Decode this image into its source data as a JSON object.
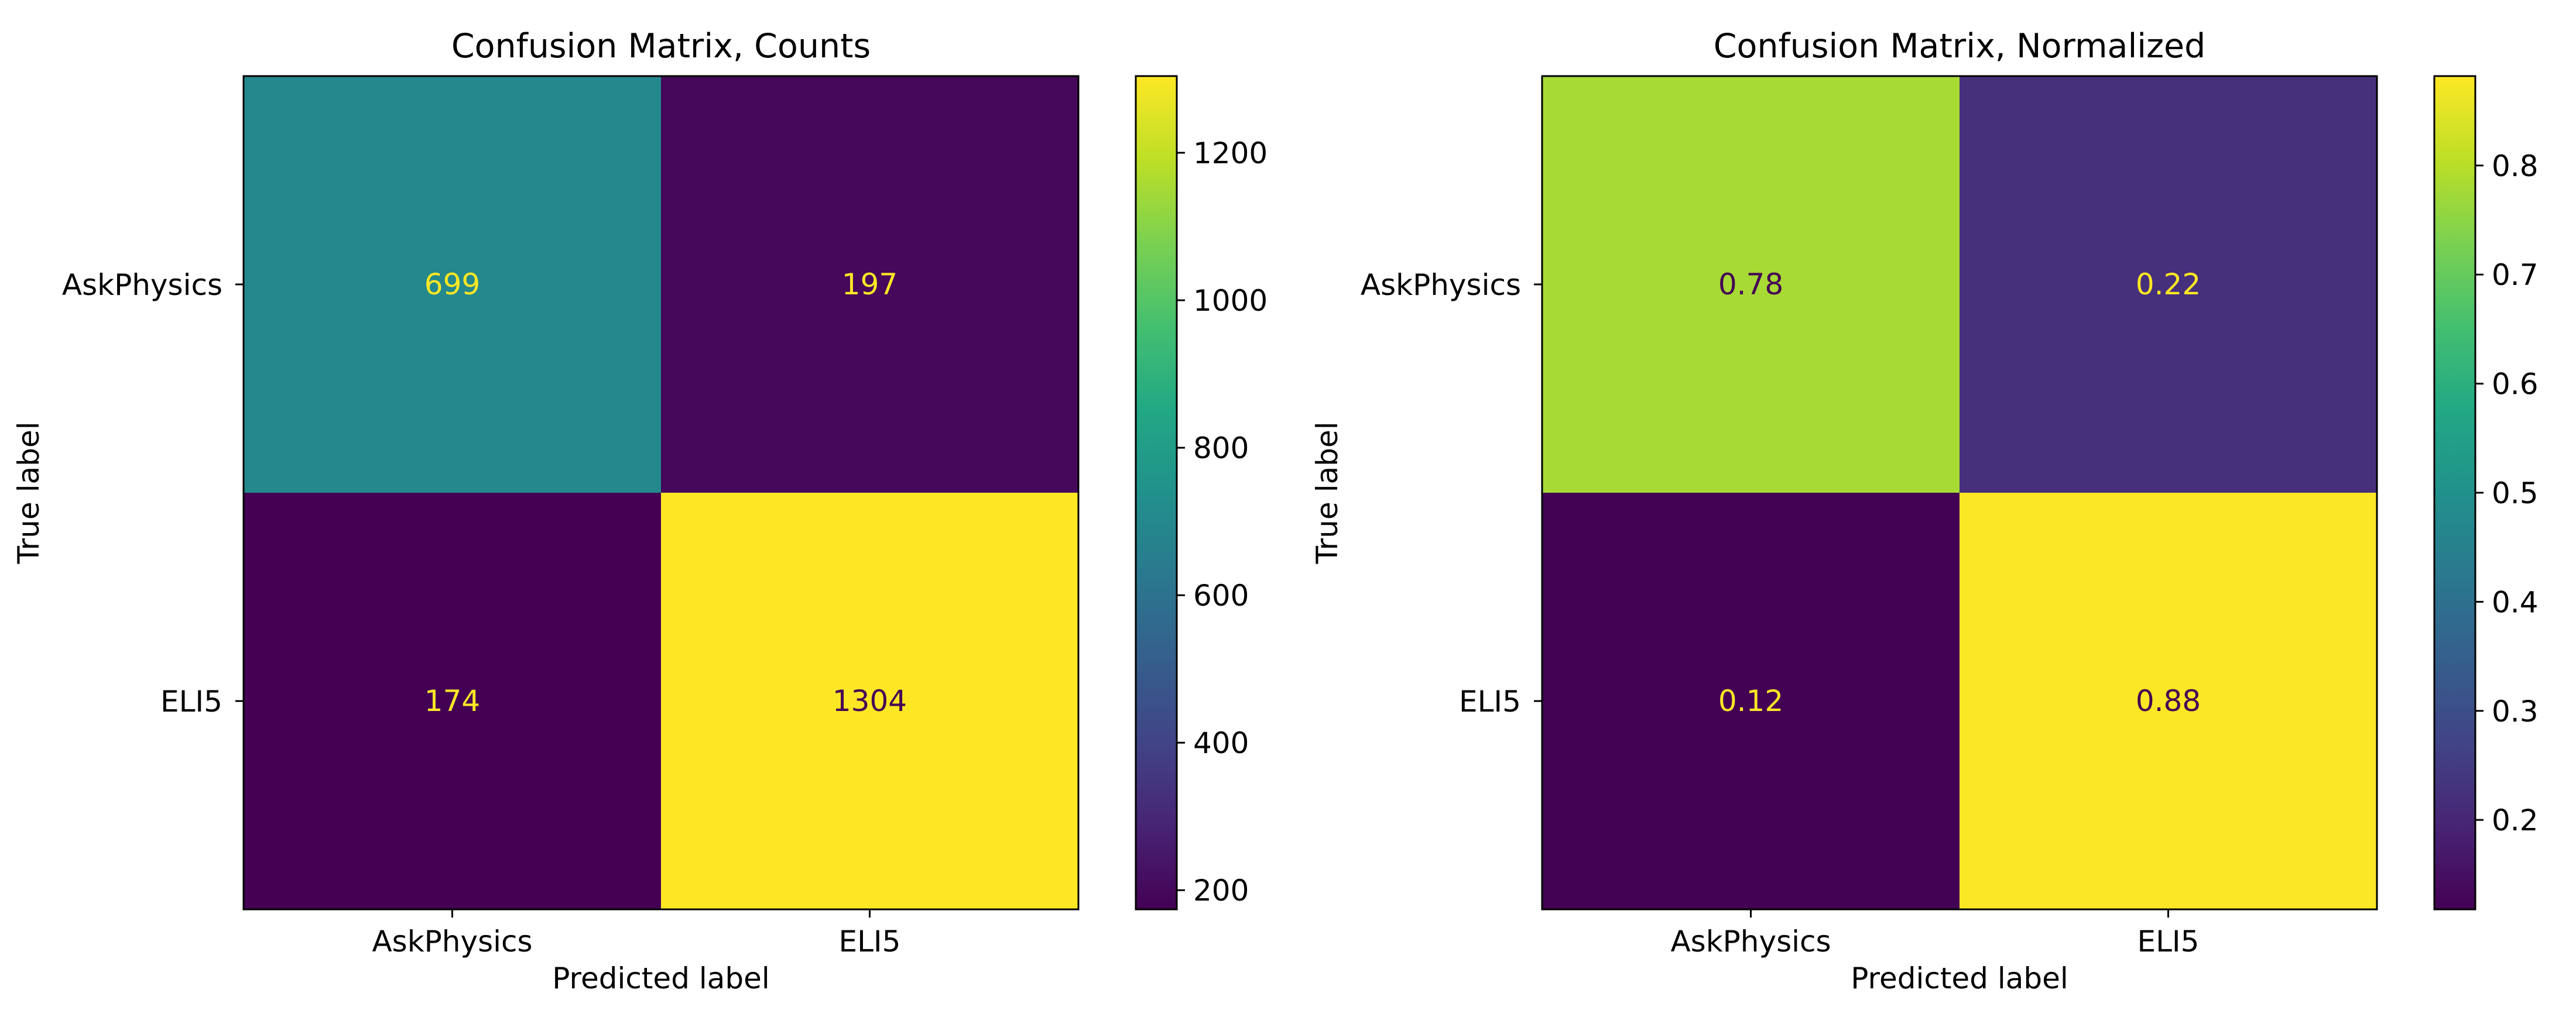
{
  "chart_data": [
    {
      "type": "heatmap",
      "title": "Confusion Matrix, Counts",
      "xlabel": "Predicted label",
      "ylabel": "True label",
      "x_categories": [
        "AskPhysics",
        "ELI5"
      ],
      "y_categories": [
        "AskPhysics",
        "ELI5"
      ],
      "values": [
        [
          699,
          197
        ],
        [
          174,
          1304
        ]
      ],
      "cell_labels": [
        [
          "699",
          "197"
        ],
        [
          "174",
          "1304"
        ]
      ],
      "colormap": "viridis",
      "colorbar": {
        "range": [
          174,
          1304
        ],
        "ticks": [
          200,
          400,
          600,
          800,
          1000,
          1200
        ],
        "tick_labels": [
          "200",
          "400",
          "600",
          "800",
          "1000",
          "1200"
        ]
      },
      "grid": false
    },
    {
      "type": "heatmap",
      "title": "Confusion Matrix, Normalized",
      "xlabel": "Predicted label",
      "ylabel": "True label",
      "x_categories": [
        "AskPhysics",
        "ELI5"
      ],
      "y_categories": [
        "AskPhysics",
        "ELI5"
      ],
      "values": [
        [
          0.78,
          0.22
        ],
        [
          0.12,
          0.88
        ]
      ],
      "cell_labels": [
        [
          "0.78",
          "0.22"
        ],
        [
          "0.12",
          "0.88"
        ]
      ],
      "colormap": "viridis",
      "colorbar": {
        "range": [
          0.118,
          0.882
        ],
        "ticks": [
          0.2,
          0.3,
          0.4,
          0.5,
          0.6,
          0.7,
          0.8
        ],
        "tick_labels": [
          "0.2",
          "0.3",
          "0.4",
          "0.5",
          "0.6",
          "0.7",
          "0.8"
        ]
      },
      "grid": false
    }
  ]
}
